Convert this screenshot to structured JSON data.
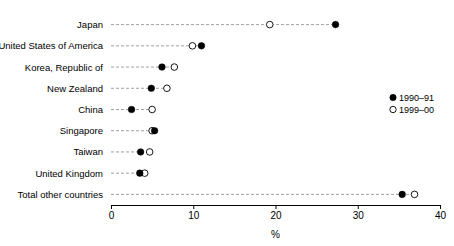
{
  "chart_data": {
    "type": "dot",
    "orientation": "horizontal",
    "x_label": "%",
    "categories": [
      "Japan",
      "United States of America",
      "Korea, Republic of",
      "New Zealand",
      "China",
      "Singapore",
      "Taiwan",
      "United Kingdom",
      "Total other countries"
    ],
    "series": [
      {
        "name": "1990–91",
        "color": "#000000",
        "marker": "circle",
        "values": [
          27.3,
          11.0,
          6.2,
          4.9,
          2.5,
          5.3,
          3.6,
          3.5,
          35.4
        ]
      },
      {
        "name": "1999–00",
        "color": "#000000",
        "marker": "circle-open",
        "values": [
          19.3,
          9.9,
          7.7,
          6.8,
          5.0,
          5.0,
          4.7,
          4.1,
          36.9
        ]
      }
    ],
    "xlim": [
      0,
      40
    ],
    "xticks": [
      0,
      10,
      20,
      30,
      40
    ],
    "legend": "right",
    "grid": false
  }
}
